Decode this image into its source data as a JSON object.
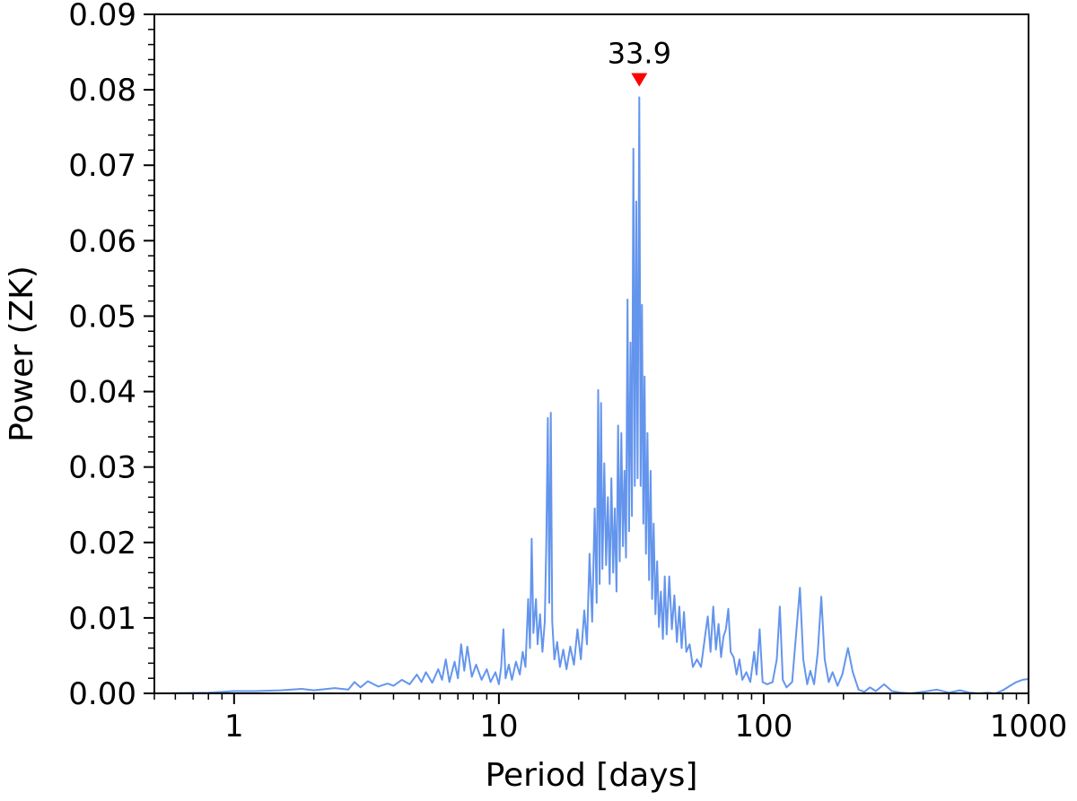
{
  "chart_data": {
    "type": "line",
    "title": "",
    "xlabel": "Period [days]",
    "ylabel": "Power (ZK)",
    "xscale": "log",
    "xlim": [
      0.5,
      1000
    ],
    "ylim": [
      0,
      0.09
    ],
    "grid": false,
    "x_ticks": [
      {
        "value": 1,
        "label": "1"
      },
      {
        "value": 10,
        "label": "10"
      },
      {
        "value": 100,
        "label": "100"
      },
      {
        "value": 1000,
        "label": "1000"
      }
    ],
    "y_ticks": [
      {
        "value": 0,
        "label": "0.00"
      },
      {
        "value": 0.01,
        "label": "0.01"
      },
      {
        "value": 0.02,
        "label": "0.02"
      },
      {
        "value": 0.03,
        "label": "0.03"
      },
      {
        "value": 0.04,
        "label": "0.04"
      },
      {
        "value": 0.05,
        "label": "0.05"
      },
      {
        "value": 0.06,
        "label": "0.06"
      },
      {
        "value": 0.07,
        "label": "0.07"
      },
      {
        "value": 0.08,
        "label": "0.08"
      },
      {
        "value": 0.09,
        "label": "0.09"
      }
    ],
    "line_color": "#6495ED",
    "marker_color": "#FF0000",
    "peak": {
      "x": 33.9,
      "y": 0.079,
      "label": "33.9"
    },
    "series": [
      {
        "points": [
          [
            0.5,
            0.0
          ],
          [
            0.8,
            0.0001
          ],
          [
            1.0,
            0.0003
          ],
          [
            1.2,
            0.0003
          ],
          [
            1.5,
            0.0004
          ],
          [
            1.8,
            0.0006
          ],
          [
            2.0,
            0.0004
          ],
          [
            2.4,
            0.0007
          ],
          [
            2.7,
            0.0005
          ],
          [
            2.85,
            0.0015
          ],
          [
            3.0,
            0.0008
          ],
          [
            3.2,
            0.0016
          ],
          [
            3.5,
            0.0009
          ],
          [
            3.8,
            0.0013
          ],
          [
            4.0,
            0.001
          ],
          [
            4.3,
            0.0018
          ],
          [
            4.6,
            0.0012
          ],
          [
            4.9,
            0.0025
          ],
          [
            5.1,
            0.0015
          ],
          [
            5.3,
            0.0028
          ],
          [
            5.6,
            0.0014
          ],
          [
            5.9,
            0.0032
          ],
          [
            6.1,
            0.0018
          ],
          [
            6.3,
            0.0045
          ],
          [
            6.5,
            0.0015
          ],
          [
            6.8,
            0.0042
          ],
          [
            7.0,
            0.002
          ],
          [
            7.2,
            0.0065
          ],
          [
            7.4,
            0.003
          ],
          [
            7.6,
            0.0062
          ],
          [
            7.9,
            0.0022
          ],
          [
            8.2,
            0.0038
          ],
          [
            8.6,
            0.0018
          ],
          [
            9.0,
            0.0032
          ],
          [
            9.3,
            0.0015
          ],
          [
            9.7,
            0.0028
          ],
          [
            10.0,
            0.0012
          ],
          [
            10.2,
            0.0035
          ],
          [
            10.4,
            0.0085
          ],
          [
            10.6,
            0.002
          ],
          [
            10.9,
            0.0038
          ],
          [
            11.2,
            0.0018
          ],
          [
            11.6,
            0.0042
          ],
          [
            12.0,
            0.0025
          ],
          [
            12.3,
            0.0055
          ],
          [
            12.6,
            0.0035
          ],
          [
            12.9,
            0.0125
          ],
          [
            13.1,
            0.006
          ],
          [
            13.3,
            0.0205
          ],
          [
            13.5,
            0.008
          ],
          [
            13.8,
            0.0125
          ],
          [
            14.0,
            0.0065
          ],
          [
            14.3,
            0.0105
          ],
          [
            14.6,
            0.0055
          ],
          [
            14.9,
            0.0095
          ],
          [
            15.1,
            0.02
          ],
          [
            15.3,
            0.0365
          ],
          [
            15.5,
            0.012
          ],
          [
            15.7,
            0.0372
          ],
          [
            15.9,
            0.0095
          ],
          [
            16.2,
            0.0045
          ],
          [
            16.6,
            0.0068
          ],
          [
            17.0,
            0.0035
          ],
          [
            17.5,
            0.0058
          ],
          [
            18.0,
            0.0032
          ],
          [
            18.6,
            0.0062
          ],
          [
            19.2,
            0.0038
          ],
          [
            19.8,
            0.0085
          ],
          [
            20.4,
            0.0045
          ],
          [
            21.0,
            0.011
          ],
          [
            21.5,
            0.0065
          ],
          [
            22.0,
            0.0185
          ],
          [
            22.5,
            0.0095
          ],
          [
            23.0,
            0.0245
          ],
          [
            23.4,
            0.012
          ],
          [
            23.7,
            0.0402
          ],
          [
            24.0,
            0.0145
          ],
          [
            24.3,
            0.0385
          ],
          [
            24.6,
            0.0165
          ],
          [
            25.0,
            0.0305
          ],
          [
            25.4,
            0.017
          ],
          [
            25.8,
            0.026
          ],
          [
            26.2,
            0.0145
          ],
          [
            26.6,
            0.0285
          ],
          [
            27.0,
            0.016
          ],
          [
            27.4,
            0.0245
          ],
          [
            27.8,
            0.0135
          ],
          [
            28.2,
            0.0355
          ],
          [
            28.6,
            0.0175
          ],
          [
            29.0,
            0.0345
          ],
          [
            29.4,
            0.0195
          ],
          [
            29.8,
            0.0295
          ],
          [
            30.2,
            0.018
          ],
          [
            30.6,
            0.0522
          ],
          [
            31.0,
            0.0215
          ],
          [
            31.4,
            0.0465
          ],
          [
            31.8,
            0.0235
          ],
          [
            32.2,
            0.0722
          ],
          [
            32.6,
            0.0275
          ],
          [
            33.0,
            0.0652
          ],
          [
            33.4,
            0.0285
          ],
          [
            33.9,
            0.079
          ],
          [
            34.3,
            0.0275
          ],
          [
            34.7,
            0.0515
          ],
          [
            35.1,
            0.0225
          ],
          [
            35.5,
            0.042
          ],
          [
            35.9,
            0.0185
          ],
          [
            36.4,
            0.0345
          ],
          [
            36.9,
            0.015
          ],
          [
            37.4,
            0.0295
          ],
          [
            37.9,
            0.0125
          ],
          [
            38.4,
            0.0225
          ],
          [
            39.0,
            0.0105
          ],
          [
            39.6,
            0.0175
          ],
          [
            40.2,
            0.0088
          ],
          [
            40.9,
            0.0135
          ],
          [
            41.6,
            0.0072
          ],
          [
            42.3,
            0.0155
          ],
          [
            43.0,
            0.0078
          ],
          [
            44.0,
            0.0155
          ],
          [
            45.0,
            0.0085
          ],
          [
            46.0,
            0.013
          ],
          [
            47.0,
            0.0068
          ],
          [
            48.0,
            0.0115
          ],
          [
            49.0,
            0.006
          ],
          [
            50.0,
            0.0108
          ],
          [
            51.0,
            0.0055
          ],
          [
            52.5,
            0.0065
          ],
          [
            54.0,
            0.0035
          ],
          [
            56.0,
            0.0045
          ],
          [
            58.0,
            0.0035
          ],
          [
            60.0,
            0.0075
          ],
          [
            61.5,
            0.0102
          ],
          [
            63.0,
            0.0055
          ],
          [
            64.5,
            0.0115
          ],
          [
            66.0,
            0.0058
          ],
          [
            67.5,
            0.0092
          ],
          [
            69.0,
            0.0048
          ],
          [
            70.5,
            0.0075
          ],
          [
            72.0,
            0.0085
          ],
          [
            73.5,
            0.0112
          ],
          [
            75.0,
            0.0055
          ],
          [
            77.0,
            0.0048
          ],
          [
            79.0,
            0.0025
          ],
          [
            81.0,
            0.0045
          ],
          [
            83.0,
            0.0018
          ],
          [
            86.0,
            0.0028
          ],
          [
            89.0,
            0.0015
          ],
          [
            92.0,
            0.0055
          ],
          [
            94.0,
            0.0025
          ],
          [
            96.5,
            0.0085
          ],
          [
            99.0,
            0.0015
          ],
          [
            103.0,
            0.0012
          ],
          [
            108.0,
            0.0015
          ],
          [
            112.0,
            0.0045
          ],
          [
            115.0,
            0.0115
          ],
          [
            118.0,
            0.0018
          ],
          [
            122.0,
            0.0008
          ],
          [
            128.0,
            0.0015
          ],
          [
            133.0,
            0.0085
          ],
          [
            137.0,
            0.014
          ],
          [
            141.0,
            0.0045
          ],
          [
            146.0,
            0.0012
          ],
          [
            150.0,
            0.003
          ],
          [
            155.0,
            0.0012
          ],
          [
            160.0,
            0.0055
          ],
          [
            165.0,
            0.0128
          ],
          [
            170.0,
            0.0045
          ],
          [
            176.0,
            0.0015
          ],
          [
            182.0,
            0.0028
          ],
          [
            190.0,
            0.001
          ],
          [
            198.0,
            0.0025
          ],
          [
            208.0,
            0.006
          ],
          [
            217.0,
            0.0028
          ],
          [
            228.0,
            0.0005
          ],
          [
            240.0,
            0.0002
          ],
          [
            252.0,
            0.0008
          ],
          [
            265.0,
            0.0003
          ],
          [
            285.0,
            0.0012
          ],
          [
            305.0,
            0.0003
          ],
          [
            330.0,
            0.0001
          ],
          [
            360.0,
            0.0
          ],
          [
            400.0,
            0.0002
          ],
          [
            450.0,
            0.0005
          ],
          [
            500.0,
            0.0001
          ],
          [
            550.0,
            0.0004
          ],
          [
            600.0,
            0.0001
          ],
          [
            650.0,
            0.0
          ],
          [
            700.0,
            0.0001
          ],
          [
            750.0,
            0.0
          ],
          [
            800.0,
            0.0004
          ],
          [
            850.0,
            0.001
          ],
          [
            900.0,
            0.0015
          ],
          [
            950.0,
            0.0018
          ],
          [
            1000.0,
            0.0019
          ]
        ]
      }
    ]
  }
}
